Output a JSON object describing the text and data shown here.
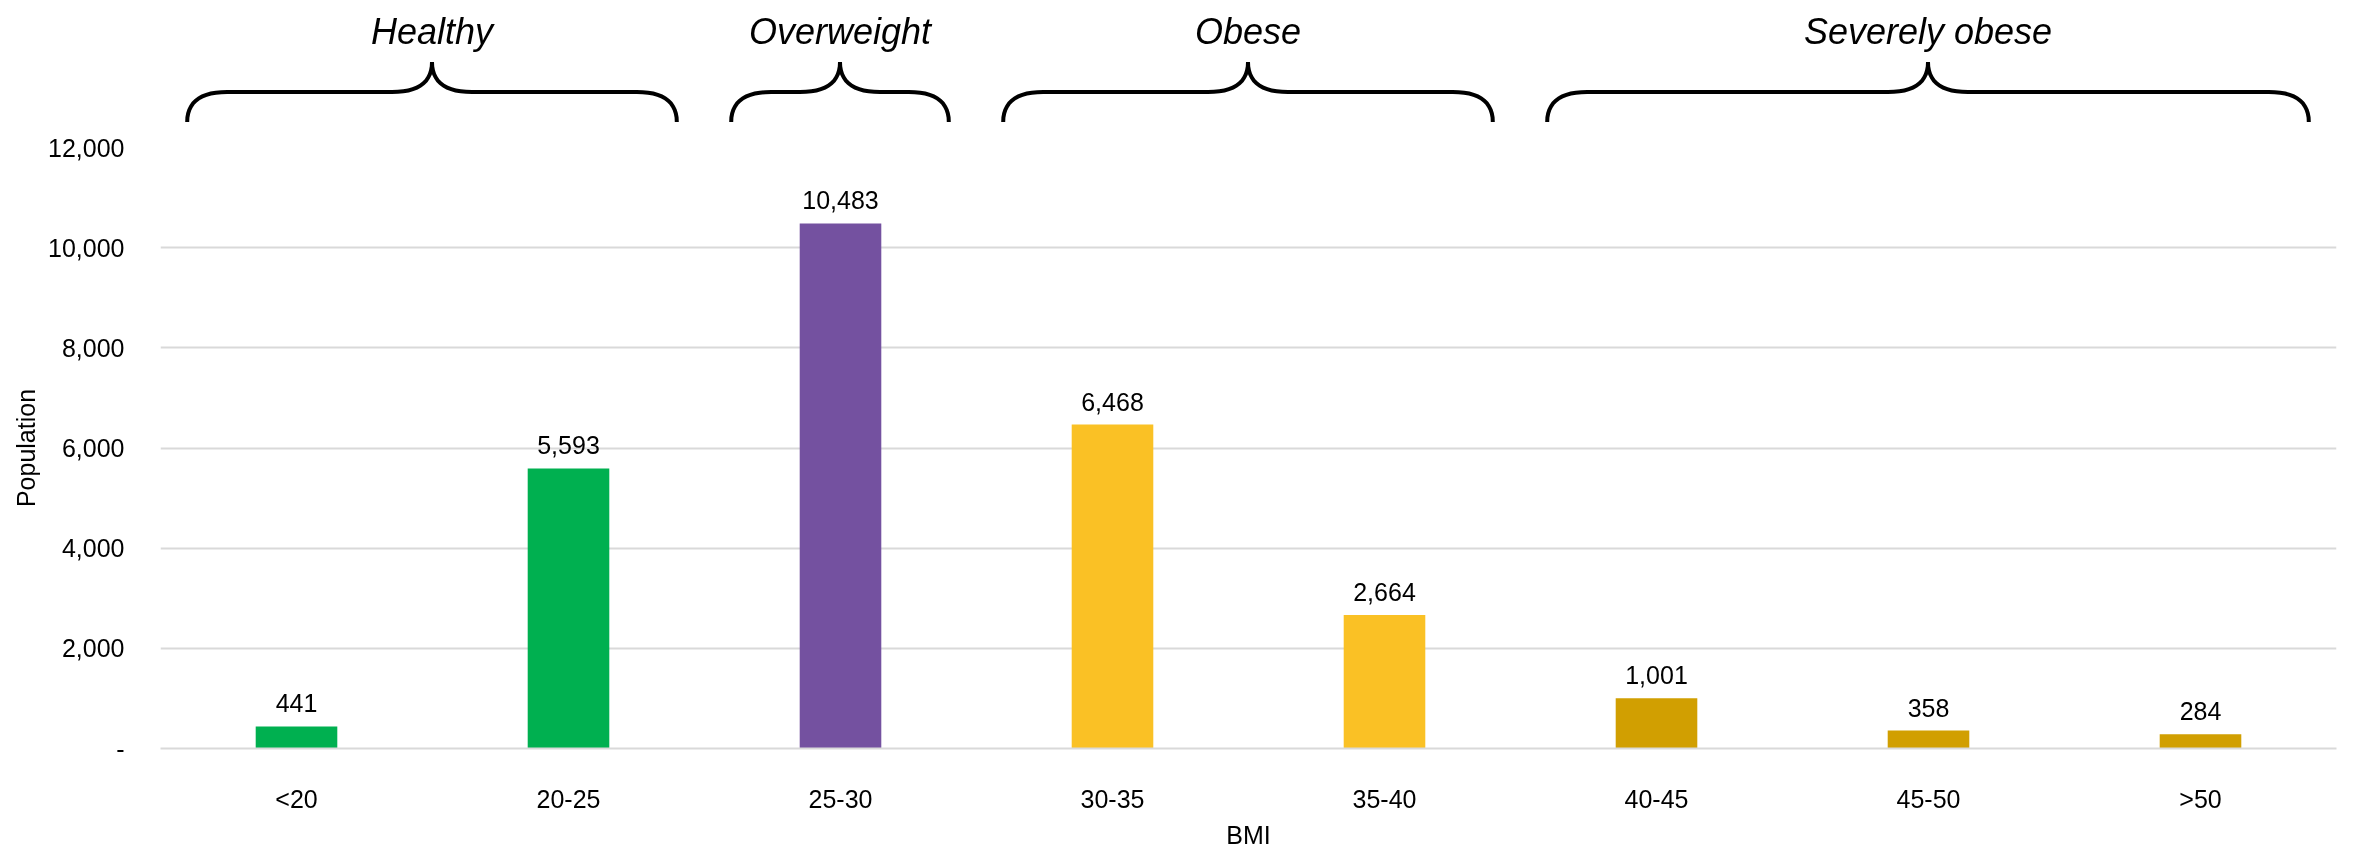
{
  "chart_data": {
    "type": "bar",
    "xlabel": "BMI",
    "ylabel": "Population",
    "categories": [
      "<20",
      "20-25",
      "25-30",
      "30-35",
      "35-40",
      "40-45",
      "45-50",
      ">50"
    ],
    "values": [
      441,
      5593,
      10483,
      6468,
      2664,
      1001,
      358,
      284
    ],
    "colors": [
      "#00b050",
      "#00b050",
      "#7451a0",
      "#fac125",
      "#fac125",
      "#d19f01",
      "#d19f01",
      "#d19f01"
    ],
    "ylim": [
      0,
      12000
    ],
    "yticks": [
      {
        "value": 0,
        "label": "-"
      },
      {
        "value": 2000,
        "label": "2,000"
      },
      {
        "value": 4000,
        "label": "4,000"
      },
      {
        "value": 6000,
        "label": "6,000"
      },
      {
        "value": 8000,
        "label": "8,000"
      },
      {
        "value": 10000,
        "label": "10,000"
      },
      {
        "value": 12000,
        "label": "12,000"
      }
    ],
    "grid": "y",
    "data_labels": true,
    "value_labels": [
      "441",
      "5,593",
      "10,483",
      "6,468",
      "2,664",
      "1,001",
      "358",
      "284"
    ],
    "annotations": [
      "Healthy",
      "Overweight",
      "Obese",
      "Severely obese"
    ]
  }
}
